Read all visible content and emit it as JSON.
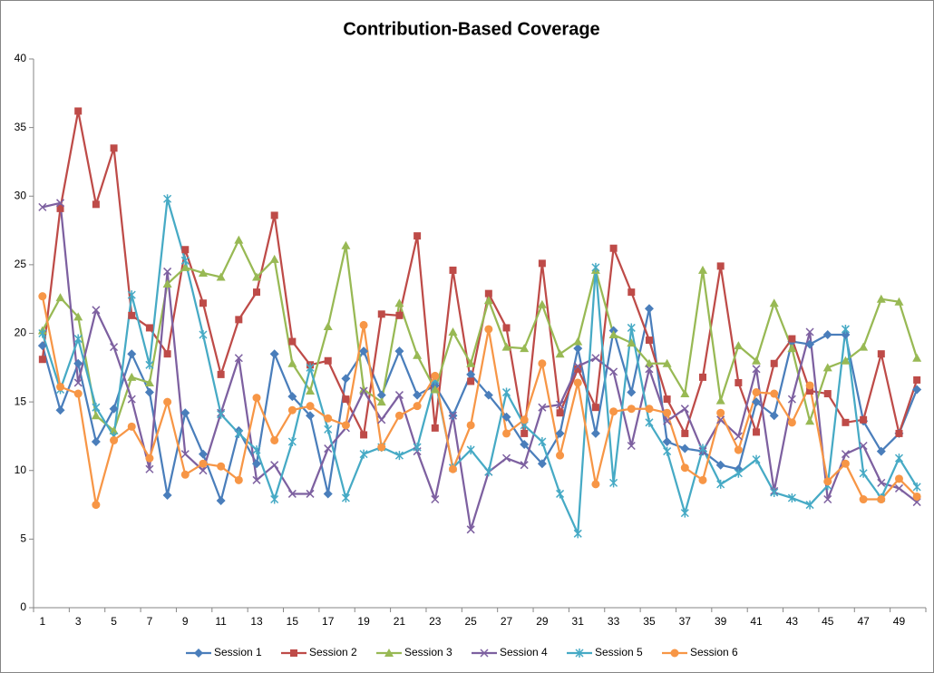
{
  "chart_data": {
    "type": "line",
    "title": "Contribution-Based Coverage",
    "categories": [
      1,
      null,
      3,
      null,
      5,
      null,
      7,
      null,
      9,
      null,
      11,
      null,
      13,
      null,
      15,
      null,
      17,
      null,
      19,
      null,
      21,
      null,
      23,
      null,
      25,
      null,
      27,
      null,
      29,
      null,
      31,
      null,
      33,
      null,
      35,
      null,
      37,
      null,
      39,
      null,
      41,
      null,
      43,
      null,
      45,
      null,
      47,
      null,
      49,
      null
    ],
    "ylim": [
      0,
      40
    ],
    "yticks": [
      0,
      5,
      10,
      15,
      20,
      25,
      30,
      35,
      40
    ],
    "grid": false,
    "legend": "bottom",
    "series": [
      {
        "name": "Session 1",
        "color": "#4a7ebb",
        "marker": "diamond",
        "values": [
          19.1,
          14.4,
          17.8,
          12.1,
          14.5,
          18.5,
          15.7,
          8.2,
          14.2,
          11.2,
          7.8,
          12.9,
          10.5,
          18.5,
          15.4,
          14.0,
          8.3,
          16.7,
          18.7,
          15.5,
          18.7,
          15.5,
          16.2,
          14.0,
          17.0,
          15.5,
          13.9,
          11.9,
          10.5,
          12.7,
          18.9,
          12.7,
          20.2,
          15.7,
          21.8,
          12.1,
          11.6,
          11.4,
          10.4,
          10.1,
          15.0,
          14.0,
          19.4,
          19.2,
          19.9,
          19.9,
          13.6,
          11.4,
          12.7,
          15.9
        ]
      },
      {
        "name": "Session 2",
        "color": "#be4b48",
        "marker": "square",
        "values": [
          18.1,
          29.1,
          36.2,
          29.4,
          33.5,
          21.3,
          20.4,
          18.5,
          26.1,
          22.2,
          17.0,
          21.0,
          23.0,
          28.6,
          19.4,
          17.7,
          18.0,
          15.2,
          12.6,
          21.4,
          21.3,
          27.1,
          13.1,
          24.6,
          16.5,
          22.9,
          20.4,
          12.7,
          25.1,
          14.2,
          17.4,
          14.6,
          26.2,
          23.0,
          19.5,
          15.2,
          12.7,
          16.8,
          24.9,
          16.4,
          12.8,
          17.8,
          19.6,
          15.8,
          15.6,
          13.5,
          13.7,
          18.5,
          12.7,
          16.6
        ]
      },
      {
        "name": "Session 3",
        "color": "#98b954",
        "marker": "triangle",
        "values": [
          20.2,
          22.6,
          21.2,
          14.0,
          12.9,
          16.8,
          16.4,
          23.6,
          24.8,
          24.4,
          24.1,
          26.8,
          24.1,
          25.4,
          17.8,
          15.8,
          20.5,
          26.4,
          15.9,
          15.0,
          22.2,
          18.4,
          15.9,
          20.1,
          17.8,
          22.4,
          19.0,
          18.9,
          22.1,
          18.5,
          19.4,
          24.6,
          19.9,
          19.3,
          17.8,
          17.8,
          15.6,
          24.6,
          15.1,
          19.1,
          18.0,
          22.2,
          18.9,
          13.6,
          17.5,
          18.0,
          19.0,
          22.5,
          22.3,
          18.2
        ]
      },
      {
        "name": "Session 4",
        "color": "#7d60a0",
        "marker": "x",
        "values": [
          29.2,
          29.5,
          16.4,
          21.7,
          19.0,
          15.2,
          10.1,
          24.5,
          11.2,
          10.0,
          14.2,
          18.2,
          9.3,
          10.4,
          8.3,
          8.3,
          11.6,
          13.1,
          15.8,
          13.7,
          15.5,
          11.4,
          7.9,
          14.0,
          5.7,
          9.9,
          10.9,
          10.4,
          14.6,
          14.8,
          17.6,
          18.2,
          17.2,
          11.8,
          17.4,
          13.6,
          14.5,
          11.4,
          13.7,
          12.5,
          17.4,
          8.5,
          15.2,
          20.1,
          7.9,
          11.2,
          11.8,
          9.1,
          8.7,
          7.7
        ]
      },
      {
        "name": "Session 5",
        "color": "#46aac5",
        "marker": "star",
        "values": [
          20.0,
          15.9,
          19.6,
          14.6,
          12.5,
          22.8,
          17.7,
          29.8,
          25.3,
          19.9,
          14.1,
          12.7,
          11.5,
          7.9,
          12.1,
          17.5,
          13.0,
          8.0,
          11.2,
          11.7,
          11.1,
          11.7,
          16.6,
          10.2,
          11.5,
          9.9,
          15.7,
          13.3,
          12.1,
          8.3,
          5.4,
          24.8,
          9.1,
          20.4,
          13.5,
          11.4,
          6.9,
          11.6,
          9.0,
          9.8,
          10.8,
          8.4,
          8.0,
          7.5,
          8.9,
          20.3,
          9.8,
          8.0,
          10.9,
          8.8
        ]
      },
      {
        "name": "Session 6",
        "color": "#f79646",
        "marker": "circle",
        "values": [
          22.7,
          16.1,
          15.6,
          7.5,
          12.2,
          13.2,
          10.9,
          15.0,
          9.7,
          10.5,
          10.3,
          9.3,
          15.3,
          12.2,
          14.4,
          14.7,
          13.8,
          13.3,
          20.6,
          11.7,
          14.0,
          14.7,
          16.9,
          10.1,
          13.3,
          20.3,
          12.7,
          13.7,
          17.8,
          11.1,
          16.4,
          9.0,
          14.3,
          14.5,
          14.5,
          14.2,
          10.2,
          9.3,
          14.2,
          11.5,
          15.7,
          15.6,
          13.5,
          16.2,
          9.2,
          10.5,
          7.9,
          7.9,
          9.4,
          8.1
        ]
      }
    ]
  }
}
